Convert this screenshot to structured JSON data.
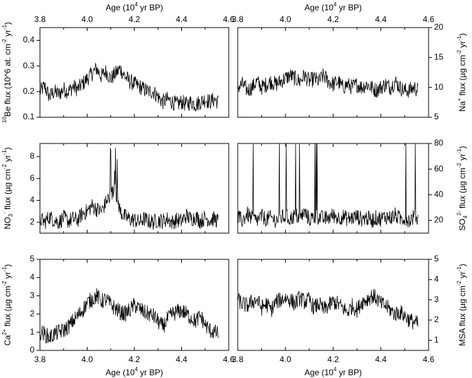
{
  "chart_data": [
    {
      "id": "be",
      "type": "line",
      "ylabel": "10Be flux (10^6 at. cm^-2 yr^-1)",
      "xlim": [
        3.8,
        4.6
      ],
      "ylim": [
        0.1,
        0.45
      ],
      "yticks": [
        "0.1",
        "0.2",
        "0.3",
        "0.4"
      ],
      "xticks": [
        "3.8",
        "4.0",
        "4.2",
        "4.4",
        "4.6"
      ],
      "xlabel_top": "Age (10^4 yr BP)",
      "yaxis": "left",
      "series": [
        {
          "x": [
            3.8,
            3.82,
            3.84,
            3.86,
            3.88,
            3.9,
            3.92,
            3.94,
            3.96,
            3.98,
            4.0,
            4.02,
            4.04,
            4.06,
            4.08,
            4.1,
            4.12,
            4.14,
            4.16,
            4.18,
            4.2,
            4.22,
            4.24,
            4.26,
            4.28,
            4.3,
            4.32,
            4.34,
            4.36,
            4.38,
            4.4,
            4.42,
            4.44,
            4.46,
            4.48,
            4.5,
            4.52,
            4.54,
            4.555
          ],
          "y": [
            0.2,
            0.22,
            0.18,
            0.2,
            0.19,
            0.21,
            0.2,
            0.22,
            0.21,
            0.23,
            0.25,
            0.27,
            0.29,
            0.26,
            0.28,
            0.25,
            0.27,
            0.29,
            0.26,
            0.24,
            0.23,
            0.22,
            0.21,
            0.2,
            0.2,
            0.18,
            0.16,
            0.17,
            0.16,
            0.15,
            0.16,
            0.15,
            0.16,
            0.15,
            0.16,
            0.17,
            0.16,
            0.17,
            0.16
          ]
        }
      ]
    },
    {
      "id": "na",
      "type": "line",
      "ylabel": "Na+ flux (µg cm^-2 yr^-1)",
      "xlim": [
        3.8,
        4.6
      ],
      "ylim": [
        5,
        20
      ],
      "yticks": [
        "5",
        "10",
        "15",
        "20"
      ],
      "xticks": [
        "3.8",
        "4.0",
        "4.2",
        "4.4",
        "4.6"
      ],
      "xlabel_top": "Age (10^4 yr BP)",
      "yaxis": "right",
      "series": [
        {
          "x": [
            3.8,
            3.82,
            3.84,
            3.86,
            3.88,
            3.9,
            3.92,
            3.94,
            3.96,
            3.98,
            4.0,
            4.02,
            4.04,
            4.06,
            4.08,
            4.1,
            4.12,
            4.14,
            4.16,
            4.18,
            4.2,
            4.22,
            4.24,
            4.26,
            4.28,
            4.3,
            4.32,
            4.34,
            4.36,
            4.38,
            4.4,
            4.42,
            4.44,
            4.46,
            4.48,
            4.5,
            4.52,
            4.54,
            4.555
          ],
          "y": [
            10,
            10.5,
            9.5,
            10,
            11,
            10,
            10.5,
            11,
            10.5,
            11,
            11.5,
            12,
            11.5,
            11,
            12,
            11,
            11.5,
            11,
            12,
            11,
            10.5,
            11,
            10,
            10.5,
            10,
            10.5,
            10,
            10.5,
            10,
            9.5,
            10,
            10.5,
            10,
            11,
            10,
            9.5,
            9.5,
            10,
            9.5
          ]
        }
      ]
    },
    {
      "id": "no3",
      "type": "line",
      "ylabel": "NO3- flux (µg cm^-2 yr^-1)",
      "xlim": [
        3.8,
        4.6
      ],
      "ylim": [
        1,
        9.2
      ],
      "yticks": [
        "2",
        "4",
        "6",
        "8"
      ],
      "xticks": [
        "3.8",
        "4.0",
        "4.2",
        "4.4",
        "4.6"
      ],
      "yaxis": "left",
      "series": [
        {
          "x": [
            3.8,
            3.82,
            3.84,
            3.86,
            3.88,
            3.9,
            3.92,
            3.94,
            3.96,
            3.98,
            4.0,
            4.02,
            4.04,
            4.06,
            4.08,
            4.1,
            4.12,
            4.14,
            4.16,
            4.18,
            4.2,
            4.22,
            4.24,
            4.26,
            4.28,
            4.3,
            4.32,
            4.34,
            4.36,
            4.38,
            4.4,
            4.42,
            4.44,
            4.46,
            4.48,
            4.5,
            4.52,
            4.54,
            4.555
          ],
          "y": [
            2.3,
            2.0,
            2.5,
            2.2,
            2.0,
            2.4,
            2.1,
            2.3,
            2.2,
            2.8,
            3.0,
            3.5,
            3.2,
            3.0,
            3.8,
            4.5,
            5.0,
            3.0,
            2.5,
            2.3,
            2.2,
            2.0,
            2.3,
            2.1,
            2.0,
            2.2,
            2.1,
            2.3,
            2.0,
            2.2,
            2.1,
            2.6,
            2.3,
            2.5,
            2.1,
            2.4,
            2.2,
            2.3,
            2.1
          ]
        }
      ]
    },
    {
      "id": "so4",
      "type": "line",
      "ylabel": "SO4 2- flux (µg cm^-2 yr^-1)",
      "xlim": [
        3.8,
        4.6
      ],
      "ylim": [
        10,
        80
      ],
      "yticks": [
        "20",
        "40",
        "60",
        "80"
      ],
      "xticks": [
        "3.8",
        "4.0",
        "4.2",
        "4.4",
        "4.6"
      ],
      "yaxis": "right",
      "series": [
        {
          "x": [
            3.8,
            3.82,
            3.84,
            3.86,
            3.88,
            3.9,
            3.92,
            3.94,
            3.96,
            3.98,
            4.0,
            4.02,
            4.04,
            4.06,
            4.08,
            4.1,
            4.12,
            4.14,
            4.16,
            4.18,
            4.2,
            4.22,
            4.24,
            4.26,
            4.28,
            4.3,
            4.32,
            4.34,
            4.36,
            4.38,
            4.4,
            4.42,
            4.44,
            4.46,
            4.48,
            4.5,
            4.52,
            4.54,
            4.555
          ],
          "y": [
            22,
            20,
            25,
            21,
            20,
            23,
            21,
            22,
            20,
            22,
            23,
            21,
            24,
            22,
            26,
            21,
            22,
            23,
            21,
            22,
            24,
            22,
            23,
            21,
            22,
            23,
            21,
            22,
            20,
            22,
            21,
            23,
            22,
            24,
            21,
            22,
            20,
            23,
            21
          ]
        }
      ]
    },
    {
      "id": "ca",
      "type": "line",
      "ylabel": "Ca2+ flux (µg cm^-2 yr^-1)",
      "xlim": [
        3.8,
        4.6
      ],
      "ylim": [
        0,
        5
      ],
      "yticks": [
        "0",
        "1",
        "2",
        "3",
        "4",
        "5"
      ],
      "xticks": [
        "3.8",
        "4.0",
        "4.2",
        "4.4",
        "4.6"
      ],
      "xlabel_bottom": "Age (10^4 yr BP)",
      "yaxis": "left",
      "series": [
        {
          "x": [
            3.8,
            3.82,
            3.84,
            3.86,
            3.88,
            3.9,
            3.92,
            3.94,
            3.96,
            3.98,
            4.0,
            4.02,
            4.04,
            4.06,
            4.08,
            4.1,
            4.12,
            4.14,
            4.16,
            4.18,
            4.2,
            4.22,
            4.24,
            4.26,
            4.28,
            4.3,
            4.32,
            4.34,
            4.36,
            4.38,
            4.4,
            4.42,
            4.44,
            4.46,
            4.48,
            4.5,
            4.52,
            4.54,
            4.555
          ],
          "y": [
            1.0,
            0.9,
            0.7,
            0.9,
            1.0,
            1.1,
            1.3,
            1.6,
            1.9,
            2.2,
            2.6,
            2.8,
            3.0,
            2.7,
            2.8,
            2.5,
            2.3,
            2.1,
            2.0,
            2.2,
            2.5,
            2.3,
            2.1,
            2.0,
            1.9,
            1.6,
            1.3,
            1.7,
            2.0,
            2.1,
            2.2,
            2.0,
            1.8,
            1.6,
            1.9,
            1.4,
            1.1,
            1.0,
            0.9
          ]
        }
      ]
    },
    {
      "id": "msa",
      "type": "line",
      "ylabel": "MSA flux (µg cm^-2 yr^-1)",
      "xlim": [
        3.8,
        4.6
      ],
      "ylim": [
        0.5,
        5
      ],
      "yticks": [
        "1",
        "2",
        "3",
        "4",
        "5"
      ],
      "xticks": [
        "3.8",
        "4.0",
        "4.2",
        "4.4",
        "4.6"
      ],
      "xlabel_bottom": "Age (10^4 yr BP)",
      "yaxis": "right",
      "series": [
        {
          "x": [
            3.8,
            3.82,
            3.84,
            3.86,
            3.88,
            3.9,
            3.92,
            3.94,
            3.96,
            3.98,
            4.0,
            4.02,
            4.04,
            4.06,
            4.08,
            4.1,
            4.12,
            4.14,
            4.16,
            4.18,
            4.2,
            4.22,
            4.24,
            4.26,
            4.28,
            4.3,
            4.32,
            4.34,
            4.36,
            4.38,
            4.4,
            4.42,
            4.44,
            4.46,
            4.48,
            4.5,
            4.52,
            4.54,
            4.555
          ],
          "y": [
            3.0,
            2.8,
            2.7,
            2.9,
            3.0,
            2.6,
            2.8,
            2.5,
            2.9,
            3.0,
            3.1,
            3.0,
            2.8,
            3.1,
            2.9,
            3.0,
            2.6,
            2.8,
            2.5,
            2.7,
            2.9,
            2.8,
            2.6,
            2.4,
            2.7,
            2.5,
            2.9,
            3.0,
            3.2,
            3.1,
            2.8,
            2.7,
            2.5,
            2.3,
            2.4,
            2.2,
            2.0,
            1.9,
            1.8
          ]
        }
      ]
    }
  ]
}
